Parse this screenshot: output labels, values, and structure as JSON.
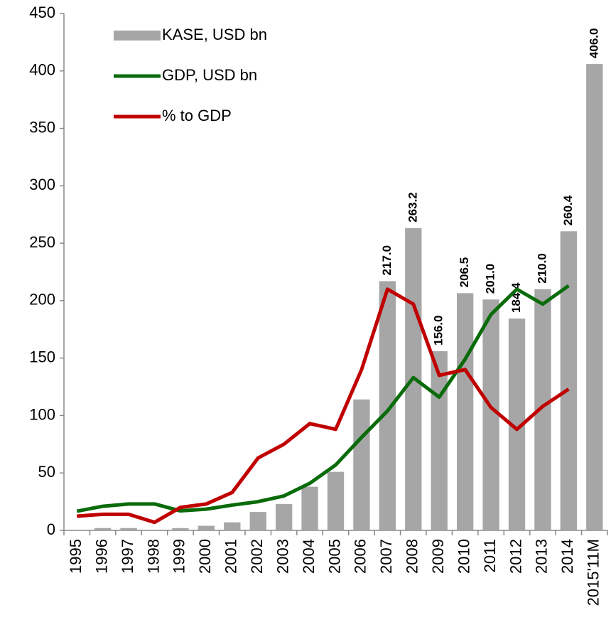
{
  "chart_data": {
    "type": "bar",
    "categories": [
      "1995",
      "1996",
      "1997",
      "1998",
      "1999",
      "2000",
      "2001",
      "2002",
      "2003",
      "2004",
      "2005",
      "2006",
      "2007",
      "2008",
      "2009",
      "2010",
      "2011",
      "2012",
      "2013",
      "2014",
      "2015'11M"
    ],
    "series": [
      {
        "name": "KASE, USD bn",
        "type": "bar",
        "color": "#a6a6a6",
        "values": [
          0.5,
          2,
          2,
          0,
          2,
          4,
          7,
          16,
          23,
          38,
          51,
          114,
          217.0,
          263.2,
          156.0,
          206.5,
          201.0,
          184.4,
          210.0,
          260.4,
          406.0
        ],
        "value_labels": [
          null,
          null,
          null,
          null,
          null,
          null,
          null,
          null,
          null,
          null,
          null,
          null,
          "217.0",
          "263.2",
          "156.0",
          "206.5",
          "201.0",
          "184.4",
          "210.0",
          "260.4",
          "406.0"
        ]
      },
      {
        "name": "GDP, USD bn",
        "type": "line",
        "color": "#0a6b0a",
        "values": [
          16.7,
          21,
          23,
          23,
          17,
          18.5,
          22,
          25,
          30,
          41,
          57,
          81,
          104,
          133,
          116,
          149,
          188,
          210,
          197,
          213,
          null
        ]
      },
      {
        "name": "% to GDP",
        "type": "line",
        "color": "#c00000",
        "values": [
          12.4,
          14,
          14,
          7,
          20,
          23,
          33,
          63,
          75,
          93,
          88,
          140,
          210,
          197,
          135,
          140,
          107,
          88,
          108,
          123,
          null
        ]
      }
    ],
    "ylim": [
      0,
      450
    ],
    "yticks": [
      0,
      50,
      100,
      150,
      200,
      250,
      300,
      350,
      400,
      450
    ],
    "legend": "top-left"
  }
}
